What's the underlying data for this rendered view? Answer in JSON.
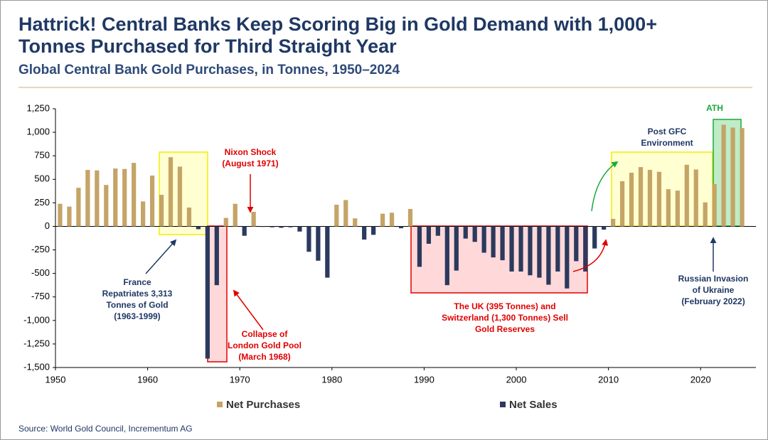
{
  "chart_data": {
    "type": "bar",
    "title": [
      "Hattrick! Central Banks Keep Scoring Big in Gold Demand with 1,000+",
      "Tonnes Purchased for Third Straight Year"
    ],
    "subtitle": "Global Central Bank Gold Purchases, in Tonnes, 1950–2024",
    "source": "Source: World Gold Council, Incrementum AG",
    "x": [
      1950,
      1951,
      1952,
      1953,
      1954,
      1955,
      1956,
      1957,
      1958,
      1959,
      1960,
      1961,
      1962,
      1963,
      1964,
      1965,
      1966,
      1967,
      1968,
      1969,
      1970,
      1971,
      1972,
      1973,
      1974,
      1975,
      1976,
      1977,
      1978,
      1979,
      1980,
      1981,
      1982,
      1983,
      1984,
      1985,
      1986,
      1987,
      1988,
      1989,
      1990,
      1991,
      1992,
      1993,
      1994,
      1995,
      1996,
      1997,
      1998,
      1999,
      2000,
      2001,
      2002,
      2003,
      2004,
      2005,
      2006,
      2007,
      2008,
      2009,
      2010,
      2011,
      2012,
      2013,
      2014,
      2015,
      2016,
      2017,
      2018,
      2019,
      2020,
      2021,
      2022,
      2023,
      2024
    ],
    "series": [
      {
        "name": "Net Purchases",
        "color": "#c4a467",
        "values": [
          240,
          210,
          410,
          600,
          595,
          440,
          615,
          610,
          675,
          265,
          540,
          335,
          735,
          635,
          200,
          null,
          null,
          null,
          90,
          240,
          null,
          155,
          null,
          null,
          null,
          null,
          null,
          null,
          null,
          null,
          230,
          280,
          85,
          null,
          null,
          135,
          145,
          null,
          185,
          null,
          null,
          null,
          null,
          null,
          null,
          null,
          null,
          null,
          null,
          null,
          null,
          null,
          null,
          null,
          null,
          null,
          null,
          null,
          null,
          null,
          80,
          480,
          570,
          630,
          600,
          580,
          395,
          380,
          655,
          605,
          255,
          450,
          1080,
          1050,
          1045
        ]
      },
      {
        "name": "Net Sales",
        "color": "#2b3a5e",
        "values": [
          null,
          null,
          null,
          null,
          null,
          null,
          null,
          null,
          null,
          null,
          null,
          null,
          null,
          null,
          null,
          -30,
          -1405,
          -625,
          null,
          null,
          -100,
          null,
          -5,
          -10,
          -15,
          -10,
          -55,
          -270,
          -365,
          -545,
          null,
          null,
          null,
          -140,
          -90,
          null,
          null,
          -20,
          null,
          -430,
          -185,
          -100,
          -625,
          -470,
          -130,
          -165,
          -280,
          -330,
          -360,
          -480,
          -480,
          -520,
          -545,
          -620,
          -480,
          -660,
          -370,
          -480,
          -235,
          -35,
          null,
          null,
          null,
          null,
          null,
          null,
          null,
          null,
          null,
          null,
          null,
          null,
          null,
          null,
          null
        ]
      }
    ],
    "xlim": [
      1950,
      2026
    ],
    "xticks": [
      1950,
      1960,
      1970,
      1980,
      1990,
      2000,
      2010,
      2020
    ],
    "ylim": [
      -1500,
      1250
    ],
    "yticks": [
      {
        "value": -1500,
        "label": "-1,500"
      },
      {
        "value": -1250,
        "label": "-1,250"
      },
      {
        "value": -1000,
        "label": "-1,000"
      },
      -750,
      -500,
      -250,
      0,
      250,
      500,
      750,
      {
        "value": 1000,
        "label": "1,000"
      },
      {
        "value": 1250,
        "label": "1,250"
      }
    ],
    "annotations": [
      {
        "lines": [
          "Nixon Shock",
          "(August 1971)"
        ]
      },
      {
        "lines": [
          "France",
          "Repatriates 3,313",
          "Tonnes of Gold",
          "(1963-1999)"
        ]
      },
      {
        "lines": [
          "Collapse of",
          "London Gold Pool",
          "(March 1968)"
        ]
      },
      {
        "lines": [
          "The UK (395 Tonnes) and",
          "Switzerland (1,300 Tonnes) Sell",
          "Gold Reserves"
        ]
      },
      {
        "lines": [
          "Post GFC",
          "Environment"
        ]
      },
      {
        "lines": [
          "ATH"
        ]
      },
      {
        "lines": [
          "Russian Invasion",
          "of Ukraine",
          "(February 2022)"
        ]
      }
    ]
  }
}
